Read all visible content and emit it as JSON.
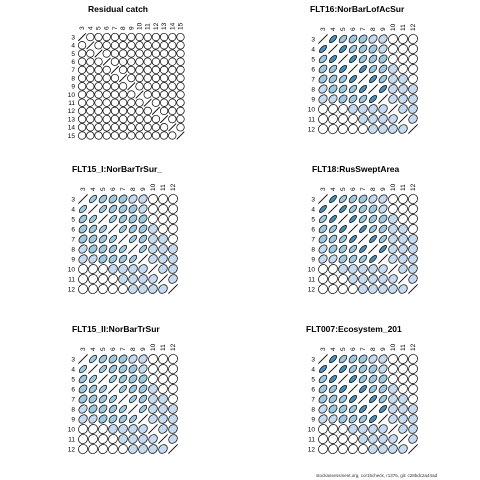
{
  "colors": {
    "outline": "#000000",
    "background": "#ffffff",
    "positive_weak": "#c6dbef",
    "positive_mid": "#9ecae1",
    "positive_strong": "#4a90b8"
  },
  "footer_text": "stockassessment.org, cor15check, r1375, git: c28bdc2a44ad",
  "chart_data": [
    {
      "type": "correlation-ellipse-matrix",
      "title": "Residual catch",
      "ages": [
        "3",
        "4",
        "5",
        "6",
        "7",
        "8",
        "9",
        "10",
        "11",
        "12",
        "13",
        "14",
        "15"
      ],
      "pattern": "identity"
    },
    {
      "type": "correlation-ellipse-matrix",
      "title": "FLT16:NorBarLofAcSur",
      "ages": [
        "3",
        "4",
        "5",
        "6",
        "7",
        "8",
        "9",
        "10",
        "11",
        "12"
      ],
      "pattern": "decay",
      "strength": 0.9
    },
    {
      "type": "correlation-ellipse-matrix",
      "title": "FLT15_I:NorBarTrSur_",
      "ages": [
        "3",
        "4",
        "5",
        "6",
        "7",
        "8",
        "9",
        "10",
        "11",
        "12"
      ],
      "pattern": "decay",
      "strength": 0.85
    },
    {
      "type": "correlation-ellipse-matrix",
      "title": "FLT18:RusSweptArea",
      "ages": [
        "3",
        "4",
        "5",
        "6",
        "7",
        "8",
        "9",
        "10",
        "11",
        "12"
      ],
      "pattern": "decay",
      "strength": 0.95
    },
    {
      "type": "correlation-ellipse-matrix",
      "title": "FLT15_II:NorBarTrSur",
      "ages": [
        "3",
        "4",
        "5",
        "6",
        "7",
        "8",
        "9",
        "10",
        "11",
        "12"
      ],
      "pattern": "decay",
      "strength": 0.85
    },
    {
      "type": "correlation-ellipse-matrix",
      "title": "FLT007:Ecosystem_201",
      "ages": [
        "3",
        "4",
        "5",
        "6",
        "7",
        "8",
        "9",
        "10",
        "11",
        "12"
      ],
      "pattern": "decay",
      "strength": 0.9
    }
  ]
}
